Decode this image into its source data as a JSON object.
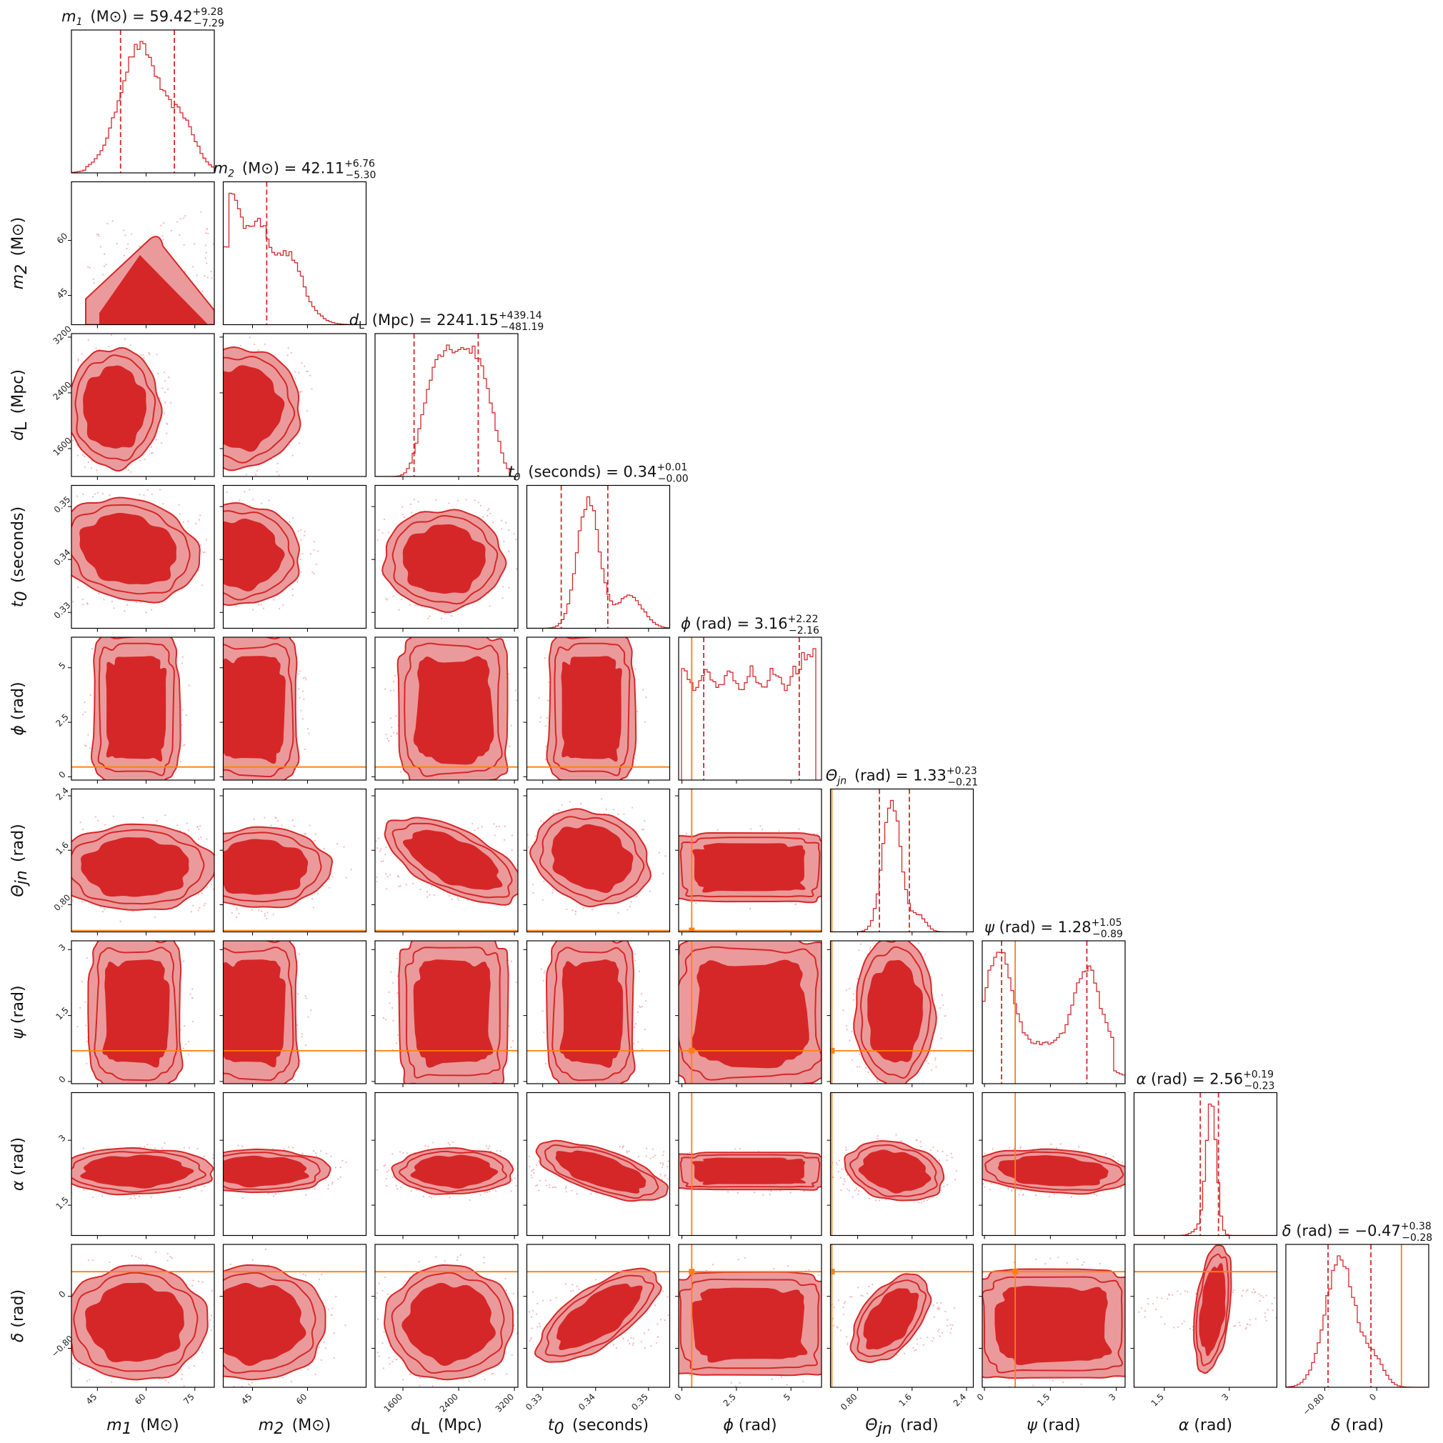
{
  "chart_data": {
    "type": "corner",
    "colors": {
      "posterior": "#d62728",
      "posterior_light": "#eb9a9b",
      "truth": "#ff7f0e"
    },
    "parameters": [
      {
        "key": "m1",
        "sym": "m",
        "sub": "1",
        "unit": "(M⊙)",
        "median": "59.42",
        "plus": "+9.28",
        "minus": "−7.29",
        "range": [
          37,
          81
        ],
        "ticks": [
          45,
          60,
          75
        ],
        "q": [
          52.13,
          68.7
        ],
        "truth": null,
        "hist": "skew"
      },
      {
        "key": "m2",
        "sym": "m",
        "sub": "2",
        "unit": "(M⊙)",
        "median": "42.11",
        "plus": "+6.76",
        "minus": "−5.30",
        "range": [
          37,
          76
        ],
        "ticks": [
          45,
          60
        ],
        "q": [
          36.81,
          48.87
        ],
        "truth": null,
        "hist": "decay"
      },
      {
        "key": "dL",
        "sym": "d",
        "sub": "L",
        "unit": "(Mpc)",
        "median": "2241.15",
        "plus": "+439.14",
        "minus": "−481.19",
        "range": [
          1200,
          3250
        ],
        "ticks": [
          1600,
          2400,
          3200
        ],
        "q": [
          1759.96,
          2680.29
        ],
        "truth": null,
        "hist": "broad"
      },
      {
        "key": "t0",
        "sym": "t",
        "sub": "0",
        "unit": "(seconds)",
        "median": "0.34",
        "plus": "+0.01",
        "minus": "−0.00",
        "range": [
          0.327,
          0.354
        ],
        "ticks": [
          0.33,
          0.34,
          0.35
        ],
        "q": [
          0.3335,
          0.3423
        ],
        "truth": null,
        "hist": "peak"
      },
      {
        "key": "phi",
        "sym": "ϕ",
        "sub": "",
        "unit": "(rad)",
        "median": "3.16",
        "plus": "+2.22",
        "minus": "−2.16",
        "range": [
          -0.15,
          6.4
        ],
        "ticks": [
          0.0,
          2.5,
          5.0
        ],
        "q": [
          1.0,
          5.38
        ],
        "truth": 0.45,
        "hist": "flat"
      },
      {
        "key": "theta",
        "sym": "Θ",
        "sub": "jn",
        "unit": "(rad)",
        "median": "1.33",
        "plus": "+0.23",
        "minus": "−0.21",
        "range": [
          0.4,
          2.5
        ],
        "ticks": [
          0.8,
          1.6,
          2.4
        ],
        "q": [
          1.12,
          1.56
        ],
        "truth": 0.42,
        "hist": "narrow"
      },
      {
        "key": "psi",
        "sym": "ψ",
        "sub": "",
        "unit": "(rad)",
        "median": "1.28",
        "plus": "+1.05",
        "minus": "−0.89",
        "range": [
          -0.05,
          3.2
        ],
        "ticks": [
          0.0,
          1.5,
          3.0
        ],
        "q": [
          0.39,
          2.33
        ],
        "truth": 0.7,
        "hist": "bimodal"
      },
      {
        "key": "alpha",
        "sym": "α",
        "sub": "",
        "unit": "(rad)",
        "median": "2.56",
        "plus": "+0.19",
        "minus": "−0.23",
        "range": [
          0.8,
          4.1
        ],
        "ticks": [
          1.5,
          3.0
        ],
        "q": [
          2.33,
          2.75
        ],
        "truth": null,
        "hist": "spike"
      },
      {
        "key": "delta",
        "sym": "δ",
        "sub": "",
        "unit": "(rad)",
        "median": "−0.47",
        "plus": "+0.38",
        "minus": "−0.28",
        "range": [
          -1.4,
          0.8
        ],
        "ticks": [
          -0.8,
          0.0
        ],
        "q": [
          -0.75,
          -0.09
        ],
        "truth": 0.38,
        "hist": "gauss"
      }
    ],
    "contours": [
      {
        "i": 1,
        "j": 0,
        "shape": "wedge"
      },
      {
        "i": 2,
        "j": 0,
        "cx": 0.3,
        "cy": 0.52,
        "rx": 0.32,
        "ry": 0.42,
        "rot": 0
      },
      {
        "i": 2,
        "j": 1,
        "cx": 0.12,
        "cy": 0.52,
        "rx": 0.42,
        "ry": 0.42,
        "rot": 0
      },
      {
        "i": 3,
        "j": 0,
        "cx": 0.4,
        "cy": 0.45,
        "rx": 0.5,
        "ry": 0.35,
        "rot": 0.25
      },
      {
        "i": 3,
        "j": 1,
        "cx": 0.12,
        "cy": 0.48,
        "rx": 0.42,
        "ry": 0.35,
        "rot": 0.1
      },
      {
        "i": 3,
        "j": 2,
        "cx": 0.48,
        "cy": 0.52,
        "rx": 0.42,
        "ry": 0.35,
        "rot": 0
      },
      {
        "i": 3,
        "j": 3,
        "cx": 0.4,
        "cy": 0.5,
        "rx": 0.42,
        "ry": 0.4,
        "rot": 0
      },
      {
        "i": 4,
        "j": 0,
        "cx": 0.45,
        "cy": 0.5,
        "rx": 0.3,
        "ry": 0.52,
        "rot": 0,
        "boxy": true
      },
      {
        "i": 4,
        "j": 1,
        "cx": 0.2,
        "cy": 0.5,
        "rx": 0.32,
        "ry": 0.52,
        "rot": 0,
        "boxy": true
      },
      {
        "i": 4,
        "j": 2,
        "cx": 0.55,
        "cy": 0.5,
        "rx": 0.38,
        "ry": 0.52,
        "rot": 0,
        "boxy": true
      },
      {
        "i": 4,
        "j": 3,
        "cx": 0.45,
        "cy": 0.5,
        "rx": 0.3,
        "ry": 0.52,
        "rot": 0,
        "boxy": true
      },
      {
        "i": 5,
        "j": 0,
        "cx": 0.45,
        "cy": 0.55,
        "rx": 0.55,
        "ry": 0.3,
        "rot": 0
      },
      {
        "i": 5,
        "j": 1,
        "cx": 0.25,
        "cy": 0.55,
        "rx": 0.5,
        "ry": 0.28,
        "rot": 0
      },
      {
        "i": 5,
        "j": 2,
        "cx": 0.55,
        "cy": 0.5,
        "rx": 0.52,
        "ry": 0.22,
        "rot": 0.45
      },
      {
        "i": 5,
        "j": 3,
        "cx": 0.45,
        "cy": 0.48,
        "rx": 0.42,
        "ry": 0.32,
        "rot": 0.35
      },
      {
        "i": 5,
        "j": 4,
        "cx": 0.5,
        "cy": 0.55,
        "rx": 0.56,
        "ry": 0.24,
        "rot": 0,
        "boxy": true
      },
      {
        "i": 6,
        "j": 0,
        "cx": 0.45,
        "cy": 0.5,
        "rx": 0.32,
        "ry": 0.52,
        "rot": 0,
        "boxy": true
      },
      {
        "i": 6,
        "j": 1,
        "cx": 0.2,
        "cy": 0.5,
        "rx": 0.32,
        "ry": 0.52,
        "rot": 0,
        "boxy": true
      },
      {
        "i": 6,
        "j": 2,
        "cx": 0.55,
        "cy": 0.5,
        "rx": 0.38,
        "ry": 0.52,
        "rot": 0,
        "boxy": true
      },
      {
        "i": 6,
        "j": 3,
        "cx": 0.45,
        "cy": 0.5,
        "rx": 0.3,
        "ry": 0.52,
        "rot": 0,
        "boxy": true
      },
      {
        "i": 6,
        "j": 4,
        "cx": 0.5,
        "cy": 0.5,
        "rx": 0.56,
        "ry": 0.52,
        "rot": 0,
        "boxy": true
      },
      {
        "i": 6,
        "j": 5,
        "cx": 0.45,
        "cy": 0.5,
        "rx": 0.28,
        "ry": 0.52,
        "rot": 0
      },
      {
        "i": 7,
        "j": 0,
        "cx": 0.45,
        "cy": 0.55,
        "rx": 0.55,
        "ry": 0.16,
        "rot": 0
      },
      {
        "i": 7,
        "j": 1,
        "cx": 0.25,
        "cy": 0.55,
        "rx": 0.5,
        "ry": 0.15,
        "rot": 0
      },
      {
        "i": 7,
        "j": 2,
        "cx": 0.55,
        "cy": 0.55,
        "rx": 0.42,
        "ry": 0.16,
        "rot": 0
      },
      {
        "i": 7,
        "j": 3,
        "cx": 0.52,
        "cy": 0.55,
        "rx": 0.48,
        "ry": 0.15,
        "rot": 0.32
      },
      {
        "i": 7,
        "j": 4,
        "cx": 0.5,
        "cy": 0.55,
        "rx": 0.56,
        "ry": 0.13,
        "rot": 0,
        "boxy": true
      },
      {
        "i": 7,
        "j": 5,
        "cx": 0.45,
        "cy": 0.55,
        "rx": 0.35,
        "ry": 0.2,
        "rot": 0.2
      },
      {
        "i": 7,
        "j": 6,
        "cx": 0.5,
        "cy": 0.55,
        "rx": 0.56,
        "ry": 0.15,
        "rot": 0.06
      },
      {
        "i": 8,
        "j": 0,
        "cx": 0.45,
        "cy": 0.55,
        "rx": 0.5,
        "ry": 0.4,
        "rot": 0
      },
      {
        "i": 8,
        "j": 1,
        "cx": 0.22,
        "cy": 0.55,
        "rx": 0.5,
        "ry": 0.4,
        "rot": 0
      },
      {
        "i": 8,
        "j": 2,
        "cx": 0.52,
        "cy": 0.55,
        "rx": 0.45,
        "ry": 0.4,
        "rot": 0
      },
      {
        "i": 8,
        "j": 3,
        "cx": 0.5,
        "cy": 0.5,
        "rx": 0.5,
        "ry": 0.2,
        "rot": -0.6
      },
      {
        "i": 8,
        "j": 4,
        "cx": 0.5,
        "cy": 0.56,
        "rx": 0.56,
        "ry": 0.36,
        "rot": 0,
        "boxy": true
      },
      {
        "i": 8,
        "j": 5,
        "cx": 0.42,
        "cy": 0.52,
        "rx": 0.36,
        "ry": 0.2,
        "rot": -0.9
      },
      {
        "i": 8,
        "j": 6,
        "cx": 0.5,
        "cy": 0.56,
        "rx": 0.56,
        "ry": 0.38,
        "rot": 0,
        "boxy": true
      },
      {
        "i": 8,
        "j": 7,
        "cx": 0.55,
        "cy": 0.45,
        "rx": 0.45,
        "ry": 0.12,
        "rot": -1.45
      }
    ]
  }
}
